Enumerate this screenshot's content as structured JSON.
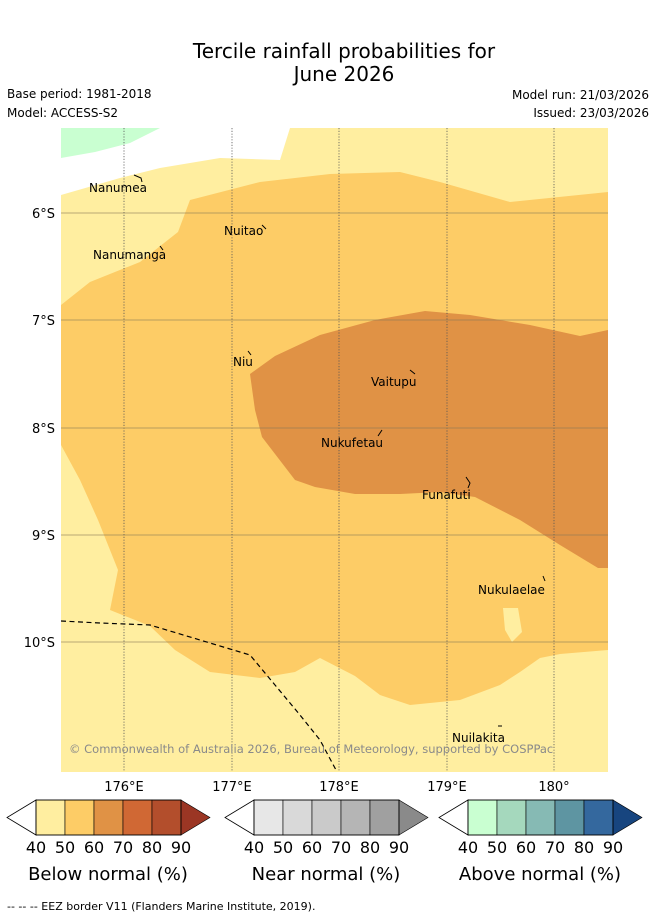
{
  "title_line1": "Tercile rainfall probabilities for",
  "title_line2": "June 2026",
  "base_period": "Base period: 1981-2018",
  "model": "Model: ACCESS-S2",
  "model_run": "Model run: 21/03/2026",
  "issued": "Issued: 23/03/2026",
  "copyright": "© Commonwealth of Australia 2026, Bureau of Meteorology, supported by COSPPac",
  "lat_ticks": [
    "6°S",
    "7°S",
    "8°S",
    "9°S",
    "10°S"
  ],
  "lon_ticks": [
    "176°E",
    "177°E",
    "178°E",
    "179°E",
    "180°"
  ],
  "places": {
    "nanumea": "Nanumea",
    "nuitao": "Nuitao",
    "nanumanga": "Nanumanga",
    "niu": "Niu",
    "vaitupu": "Vaitupu",
    "nukufetau": "Nukufetau",
    "funafuti": "Funafuti",
    "nukulaelae": "Nukulaelae",
    "nuilakita": "Nuilakita"
  },
  "legend": {
    "ticks": [
      "40",
      "50",
      "60",
      "70",
      "80",
      "90"
    ],
    "below": {
      "label": "Below normal (%)",
      "colors": [
        "#ffeea0",
        "#fdcc66",
        "#e09245",
        "#d06834",
        "#b34e2c",
        "#9b3624"
      ]
    },
    "near": {
      "label": "Near normal (%)",
      "colors": [
        "#e7e7e7",
        "#d9d9d9",
        "#cacaca",
        "#b5b5b5",
        "#a0a0a0",
        "#8a8a8a"
      ]
    },
    "above": {
      "label": "Above normal (%)",
      "colors": [
        "#c9ffd1",
        "#a5d8bd",
        "#86bab4",
        "#5e95a2",
        "#34689e",
        "#17457f"
      ]
    }
  },
  "footer": "--  --  -- EEZ border V11 (Flanders Marine Institute, 2019).",
  "colors": {
    "below40": "#ffeea0",
    "below50": "#fdcc66",
    "below60": "#e09245",
    "above40": "#c9ffd1"
  }
}
